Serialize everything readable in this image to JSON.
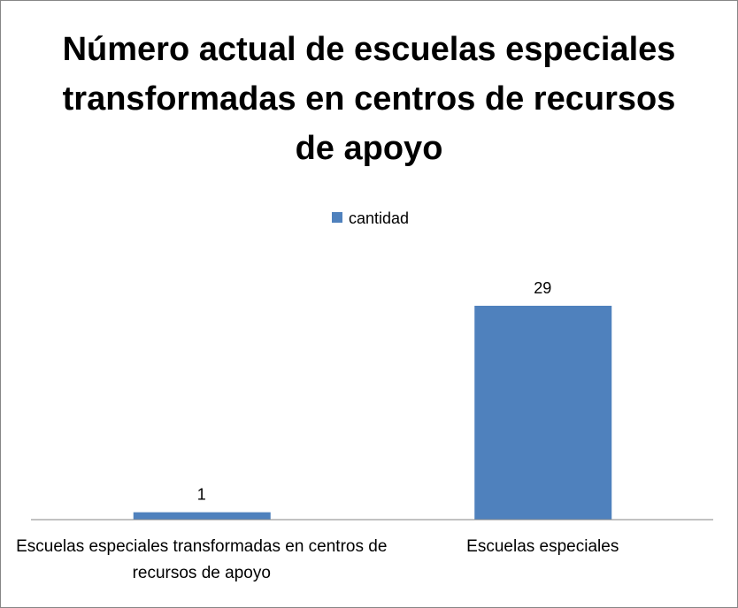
{
  "chart_data": {
    "type": "bar",
    "title": "Número actual de escuelas especiales transformadas en centros de recursos de apoyo",
    "categories": [
      "Escuelas especiales transformadas en centros de recursos de apoyo",
      "Escuelas especiales"
    ],
    "series": [
      {
        "name": "cantidad",
        "color": "#4f81bd",
        "values": [
          1,
          29
        ]
      }
    ],
    "legend": "top"
  }
}
